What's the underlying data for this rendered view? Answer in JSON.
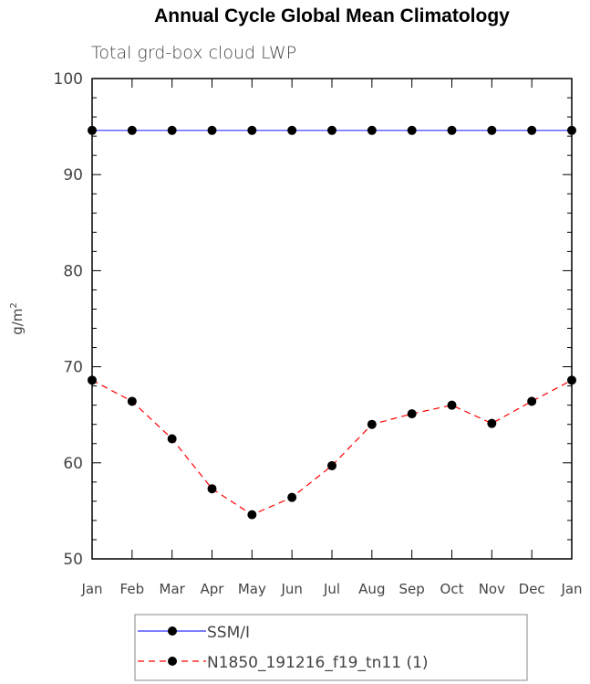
{
  "chart_data": {
    "type": "line",
    "title": "Annual Cycle Global Mean Climatology",
    "subtitle": "Total grd-box cloud LWP",
    "xlabel": "",
    "ylabel": "g/m",
    "ylabel_sup": "2",
    "categories": [
      "Jan",
      "Feb",
      "Mar",
      "Apr",
      "May",
      "Jun",
      "Jul",
      "Aug",
      "Sep",
      "Oct",
      "Nov",
      "Dec",
      "Jan"
    ],
    "ylim": [
      50,
      100
    ],
    "yticks": [
      50,
      60,
      70,
      80,
      90,
      100
    ],
    "y_minor_step": 2,
    "grid": false,
    "legend_position": "bottom-center",
    "series": [
      {
        "name": "SSM/I",
        "color": "#3333ff",
        "dash": "solid",
        "values": [
          94.6,
          94.6,
          94.6,
          94.6,
          94.6,
          94.6,
          94.6,
          94.6,
          94.6,
          94.6,
          94.6,
          94.6,
          94.6
        ]
      },
      {
        "name": "N1850_191216_f19_tn11 (1)",
        "color": "#ff0000",
        "dash": "dashed",
        "values": [
          68.6,
          66.4,
          62.5,
          57.3,
          54.6,
          56.4,
          59.7,
          64.0,
          65.1,
          66.0,
          64.1,
          66.4,
          68.6
        ]
      }
    ]
  }
}
